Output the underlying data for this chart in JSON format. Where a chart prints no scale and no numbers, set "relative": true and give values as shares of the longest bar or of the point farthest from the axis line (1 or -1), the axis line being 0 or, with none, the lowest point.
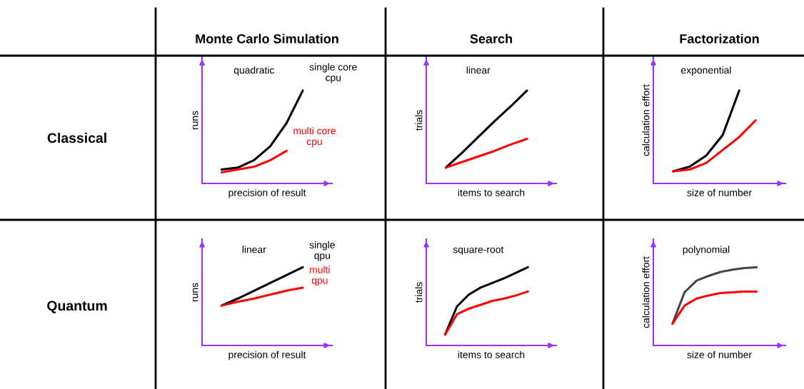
{
  "chart_data": [
    {
      "type": "line",
      "relative": true,
      "title": "Monte Carlo Simulation",
      "subtitle": "quadratic",
      "xlabel": "precision of result",
      "ylabel": "runs",
      "annotations": [
        "Classical"
      ],
      "categories": [
        null,
        null,
        null,
        null,
        null,
        null
      ],
      "series": [
        {
          "name": "single core\ncpu",
          "color": "#000000",
          "values": [
            0.15,
            0.17,
            0.25,
            0.4,
            0.65,
            1
          ]
        },
        {
          "name": "multi core\ncpu",
          "color": "#ff0000",
          "values": [
            0.12,
            0.15,
            0.18,
            0.25,
            0.35,
            null
          ]
        }
      ]
    },
    {
      "type": "line",
      "relative": true,
      "title": "Search",
      "subtitle": "linear",
      "xlabel": "items to search",
      "ylabel": "trials",
      "categories": [
        null,
        null,
        null,
        null,
        null,
        null
      ],
      "series": [
        {
          "color": "#000000",
          "values": [
            0.17,
            0.33,
            0.5,
            0.67,
            0.83,
            1
          ]
        },
        {
          "color": "#ff0000",
          "values": [
            0.17,
            0.23,
            0.29,
            0.35,
            0.42,
            0.48
          ]
        }
      ]
    },
    {
      "type": "line",
      "relative": true,
      "title": "Factorization",
      "subtitle": "exponential",
      "xlabel": "size of number",
      "ylabel": "calculation effort",
      "categories": [
        null,
        null,
        null,
        null,
        null,
        null
      ],
      "series": [
        {
          "color": "#000000",
          "values": [
            0.13,
            0.18,
            0.3,
            0.52,
            1,
            null
          ]
        },
        {
          "color": "#ff0000",
          "values": [
            0.13,
            0.15,
            0.22,
            0.36,
            0.5,
            0.68
          ]
        }
      ]
    },
    {
      "type": "line",
      "relative": true,
      "subtitle": "linear",
      "xlabel": "precision of result",
      "ylabel": "runs",
      "annotations": [
        "Quantum"
      ],
      "categories": [
        null,
        null,
        null,
        null,
        null,
        null
      ],
      "series": [
        {
          "name": "single\nqpu",
          "color": "#000000",
          "values": [
            0.51,
            0.6,
            0.7,
            0.8,
            0.9,
            1
          ]
        },
        {
          "name": "multi\nqpu",
          "color": "#ff0000",
          "values": [
            0.51,
            0.56,
            0.6,
            0.65,
            0.7,
            0.74
          ]
        }
      ]
    },
    {
      "type": "line",
      "relative": true,
      "subtitle": "square-root",
      "xlabel": "items to search",
      "ylabel": "trials",
      "categories": [
        null,
        null,
        null,
        null,
        null,
        null,
        null,
        null
      ],
      "series": [
        {
          "color": "#000000",
          "values": [
            0.14,
            0.5,
            0.65,
            0.74,
            0.8,
            0.86,
            0.93,
            1
          ]
        },
        {
          "color": "#ff0000",
          "values": [
            0.14,
            0.4,
            0.47,
            0.52,
            0.57,
            0.6,
            0.64,
            0.69
          ]
        }
      ]
    },
    {
      "type": "line",
      "relative": true,
      "subtitle": "polynomial",
      "xlabel": "size of number",
      "ylabel": "calculation effort",
      "categories": [
        null,
        null,
        null,
        null,
        null,
        null,
        null,
        null
      ],
      "series": [
        {
          "color": "#444444",
          "values": [
            0.28,
            0.68,
            0.83,
            0.89,
            0.94,
            0.97,
            0.99,
            1
          ]
        },
        {
          "color": "#ff0000",
          "values": [
            0.28,
            0.51,
            0.6,
            0.64,
            0.67,
            0.68,
            0.69,
            0.69
          ]
        }
      ]
    }
  ]
}
